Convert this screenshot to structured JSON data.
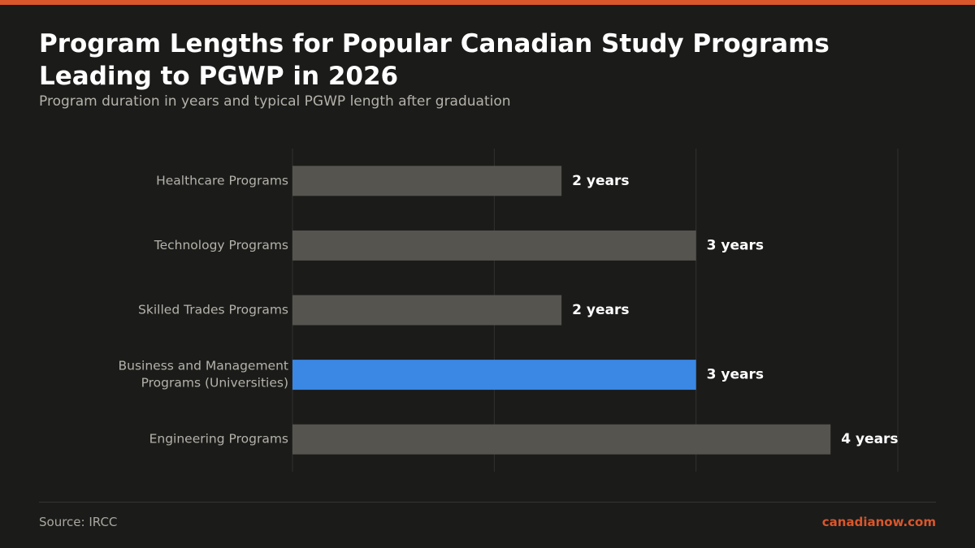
{
  "header": {
    "title": "Program Lengths for Popular Canadian Study Programs Leading to PGWP in 2026",
    "subtitle": "Program duration in years and typical PGWP length after graduation"
  },
  "footer": {
    "source": "Source: IRCC",
    "brand": "canadianow.com"
  },
  "colors": {
    "accent": "#d9572b",
    "bar": "#55544f",
    "highlight": "#3a87e4",
    "background": "#1b1b1a"
  },
  "chart_data": {
    "type": "bar",
    "orientation": "horizontal",
    "categories": [
      [
        "Healthcare Programs"
      ],
      [
        "Technology Programs"
      ],
      [
        "Skilled Trades Programs"
      ],
      [
        "Business and Management",
        "Programs (Universities)"
      ],
      [
        "Engineering Programs"
      ]
    ],
    "values": [
      2,
      3,
      2,
      3,
      4
    ],
    "value_labels": [
      "2 years",
      "3 years",
      "2 years",
      "3 years",
      "4 years"
    ],
    "highlight_index": 3,
    "xlim": [
      0,
      4.5
    ],
    "gridlines_x": [
      0,
      1.5,
      3,
      4.5
    ],
    "grid": true
  }
}
